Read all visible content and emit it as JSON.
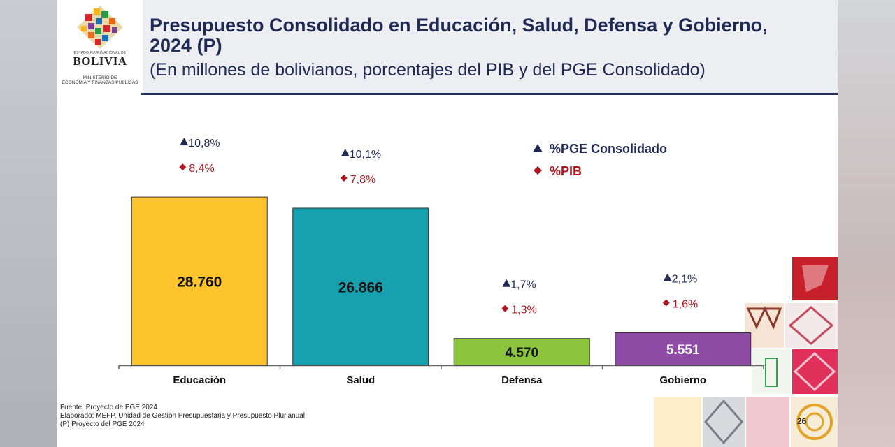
{
  "header": {
    "logo_state": "ESTADO PLURINACIONAL DE",
    "logo_country": "BOLIVIA",
    "logo_ministry_line1": "MINISTERIO DE",
    "logo_ministry_line2": "ECONOMÍA Y FINANZAS PÚBLICAS",
    "title_line1": "Presupuesto Consolidado en Educación, Salud, Defensa y Gobierno,",
    "title_line2": "2024 (P)",
    "subtitle": "(En millones de bolivianos, porcentajes del PIB y del PGE Consolidado)"
  },
  "chart_data": {
    "type": "bar",
    "categories": [
      "Educación",
      "Salud",
      "Defensa",
      "Gobierno"
    ],
    "values": [
      28760,
      26866,
      4570,
      5551
    ],
    "value_labels": [
      "28.760",
      "26.866",
      "4.570",
      "5.551"
    ],
    "bar_colors": [
      "#fec42d",
      "#17a1ae",
      "#8bc43d",
      "#8e4ba5"
    ],
    "pge_percent": [
      "10,8%",
      "10,1%",
      "1,7%",
      "2,1%"
    ],
    "pib_percent": [
      "8,4%",
      "7,8%",
      "1,3%",
      "1,6%"
    ],
    "legend": [
      {
        "symbol": "triangle",
        "label": "%PGE Consolidado",
        "color": "#1f2a55"
      },
      {
        "symbol": "diamond",
        "label": "%PIB",
        "color": "#b0161f"
      }
    ],
    "legend_position": "top-right",
    "xlabel": "",
    "ylabel": "",
    "ylim": [
      0,
      32000
    ],
    "grid": false
  },
  "footer": {
    "source": "Fuente: Proyecto de PGE 2024",
    "elaborated": "Elaborado: MEFP, Unidad de Gestión Presupuestaria y Presupuesto Plurianual",
    "note": "(P)  Proyecto del PGE 2024",
    "page_number": "26"
  },
  "colors": {
    "navy": "#1f2a55",
    "red": "#b0161f"
  }
}
